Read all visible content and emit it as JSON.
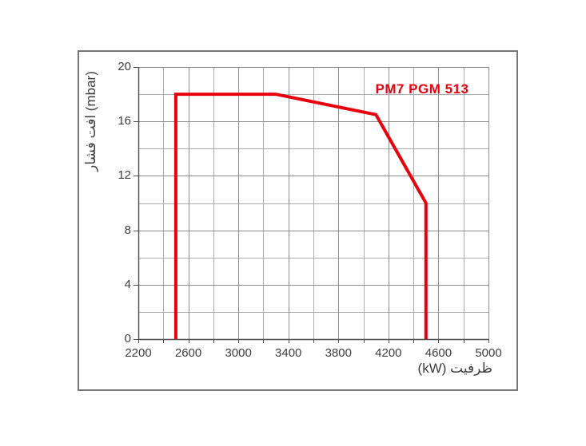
{
  "chart_data": {
    "type": "line",
    "title": "PM7 PGM 513",
    "title_color": "#e8000d",
    "xlabel": "ظرفیت (kW)",
    "ylabel": "افت فشار (mbar)",
    "xlim": [
      2200,
      5000
    ],
    "ylim": [
      0,
      20
    ],
    "x_major_step": 400,
    "x_minor_step": 200,
    "y_major_step": 4,
    "y_minor_step": 2,
    "x_tick_labels": [
      "2200",
      "2600",
      "3000",
      "3400",
      "3800",
      "4200",
      "4600",
      "5000"
    ],
    "y_tick_labels": [
      "0",
      "4",
      "8",
      "12",
      "16",
      "20"
    ],
    "grid": "major+minor",
    "legend_position": "none",
    "series": [
      {
        "name": "PM7 PGM 513",
        "color": "#e8000d",
        "line_width": 4,
        "points": [
          [
            2500,
            0
          ],
          [
            2500,
            18
          ],
          [
            3300,
            18
          ],
          [
            4100,
            16.5
          ],
          [
            4500,
            10
          ],
          [
            4500,
            0
          ]
        ]
      }
    ]
  },
  "colors": {
    "frame_border": "#767676",
    "grid_major": "#8c8c8c",
    "grid_minor": "#ababab",
    "axis_line": "#4d4d4d",
    "tick_label": "#3d3d3d",
    "background": "#ffffff"
  }
}
